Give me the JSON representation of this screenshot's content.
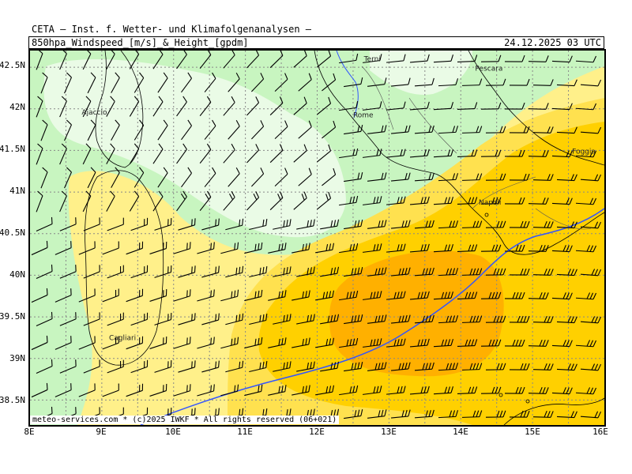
{
  "header": {
    "title": "CETA — Inst. f. Wetter- und Klimafolgenanalysen —",
    "parameter": "850hpa_Windspeed_[m/s]_&_Height_[gpdm]",
    "valid_time": "24.12.2025 03 UTC"
  },
  "footer": {
    "credit": "meteo-services.com * (c)2025 IWKF * All rights reserved (06+021)"
  },
  "axes": {
    "x_ticks": [
      "8E",
      "9E",
      "10E",
      "11E",
      "12E",
      "13E",
      "14E",
      "15E",
      "16E"
    ],
    "y_ticks": [
      "42.5N",
      "42N",
      "41.5N",
      "41N",
      "40.5N",
      "40N",
      "39.5N",
      "39N",
      "38.5N"
    ]
  },
  "cities": [
    {
      "name": "Terni",
      "lon": 12.65,
      "lat": 42.57
    },
    {
      "name": "Pescara",
      "lon": 14.2,
      "lat": 42.46
    },
    {
      "name": "Ajaccio",
      "lon": 8.72,
      "lat": 41.93
    },
    {
      "name": "Rome",
      "lon": 12.5,
      "lat": 41.9
    },
    {
      "name": "Foggia",
      "lon": 15.55,
      "lat": 41.46
    },
    {
      "name": "Napoli",
      "lon": 14.25,
      "lat": 40.85
    },
    {
      "name": "Cagliari",
      "lon": 9.1,
      "lat": 39.22
    }
  ],
  "colors": {
    "very_light_green": "#eafbe6",
    "light_green": "#c8f5c0",
    "pale_yellow": "#fff08a",
    "yellow": "#ffe14f",
    "gold": "#ffd000",
    "orange": "#ffb000",
    "height_contour": "#3355ff",
    "coast": "#000000"
  }
}
